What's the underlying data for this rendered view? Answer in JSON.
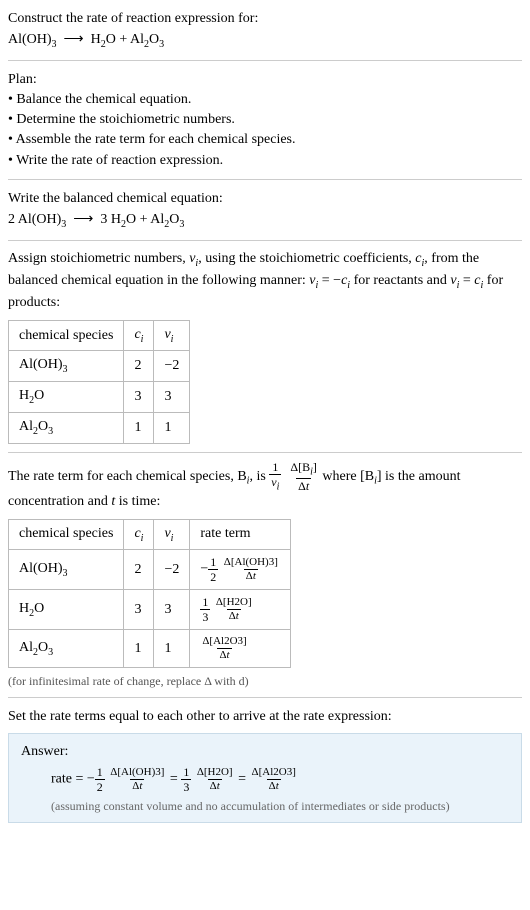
{
  "header": {
    "prompt": "Construct the rate of reaction expression for:",
    "eq_left": "Al(OH)",
    "eq_left_sub": "3",
    "arrow": "⟶",
    "eq_r1": "H",
    "eq_r1_sub": "2",
    "eq_r1_b": "O + Al",
    "eq_r1_c_sub": "2",
    "eq_r1_d": "O",
    "eq_r1_e_sub": "3"
  },
  "plan": {
    "title": "Plan:",
    "b1": "• Balance the chemical equation.",
    "b2": "• Determine the stoichiometric numbers.",
    "b3": "• Assemble the rate term for each chemical species.",
    "b4": "• Write the rate of reaction expression."
  },
  "balanced": {
    "title": "Write the balanced chemical equation:",
    "c1": "2 Al(OH)",
    "c1_sub": "3",
    "arrow": "⟶",
    "c2a": "3 H",
    "c2a_sub": "2",
    "c2b": "O + Al",
    "c2c_sub": "2",
    "c2d": "O",
    "c2e_sub": "3"
  },
  "assign": {
    "text_a": "Assign stoichiometric numbers, ",
    "v": "ν",
    "i": "i",
    "text_b": ", using the stoichiometric coefficients, ",
    "c": "c",
    "text_c": ", from the balanced chemical equation in the following manner: ",
    "eq1_l": "ν",
    "eq1_eq": " = −",
    "eq1_r": "c",
    "text_d": " for reactants and ",
    "eq2_eq": " = ",
    "text_e": " for products:"
  },
  "table1": {
    "h1": "chemical species",
    "h2": "c",
    "h3": "ν",
    "r1_s_a": "Al(OH)",
    "r1_s_sub": "3",
    "r1_c": "2",
    "r1_v": "−2",
    "r2_s_a": "H",
    "r2_s_sub": "2",
    "r2_s_b": "O",
    "r2_c": "3",
    "r2_v": "3",
    "r3_s_a": "Al",
    "r3_s_sub1": "2",
    "r3_s_b": "O",
    "r3_s_sub2": "3",
    "r3_c": "1",
    "r3_v": "1"
  },
  "rateterm_intro": {
    "a": "The rate term for each chemical species, B",
    "b": ", is ",
    "frac1_num": "1",
    "frac1_den_v": "ν",
    "frac2_num": "Δ[B",
    "frac2_num_b": "]",
    "frac2_den": "Δt",
    "c": " where [B",
    "d": "] is the amount concentration and ",
    "t": "t",
    "e": " is time:"
  },
  "table2": {
    "h1": "chemical species",
    "h2": "c",
    "h3": "ν",
    "h4": "rate term",
    "r1_s_a": "Al(OH)",
    "r1_s_sub": "3",
    "r1_c": "2",
    "r1_v": "−2",
    "r1_rt_neg": "−",
    "r1_rt_n1": "1",
    "r1_rt_d1": "2",
    "r1_rt_n2": "Δ[Al(OH)3]",
    "r1_rt_d2": "Δt",
    "r2_s_a": "H",
    "r2_s_sub": "2",
    "r2_s_b": "O",
    "r2_c": "3",
    "r2_v": "3",
    "r2_rt_n1": "1",
    "r2_rt_d1": "3",
    "r2_rt_n2": "Δ[H2O]",
    "r2_rt_d2": "Δt",
    "r3_s_a": "Al",
    "r3_s_sub1": "2",
    "r3_s_b": "O",
    "r3_s_sub2": "3",
    "r3_c": "1",
    "r3_v": "1",
    "r3_rt_n2": "Δ[Al2O3]",
    "r3_rt_d2": "Δt"
  },
  "delta_note": "(for infinitesimal rate of change, replace Δ with d)",
  "setequal": "Set the rate terms equal to each other to arrive at the rate expression:",
  "answer": {
    "label": "Answer:",
    "rate_word": "rate = −",
    "f1_n": "1",
    "f1_d": "2",
    "f1b_n": "Δ[Al(OH)3]",
    "f1b_d": "Δt",
    "eq": " = ",
    "f2_n": "1",
    "f2_d": "3",
    "f2b_n": "Δ[H2O]",
    "f2b_d": "Δt",
    "f3_n": "Δ[Al2O3]",
    "f3_d": "Δt",
    "assume": "(assuming constant volume and no accumulation of intermediates or side products)"
  }
}
